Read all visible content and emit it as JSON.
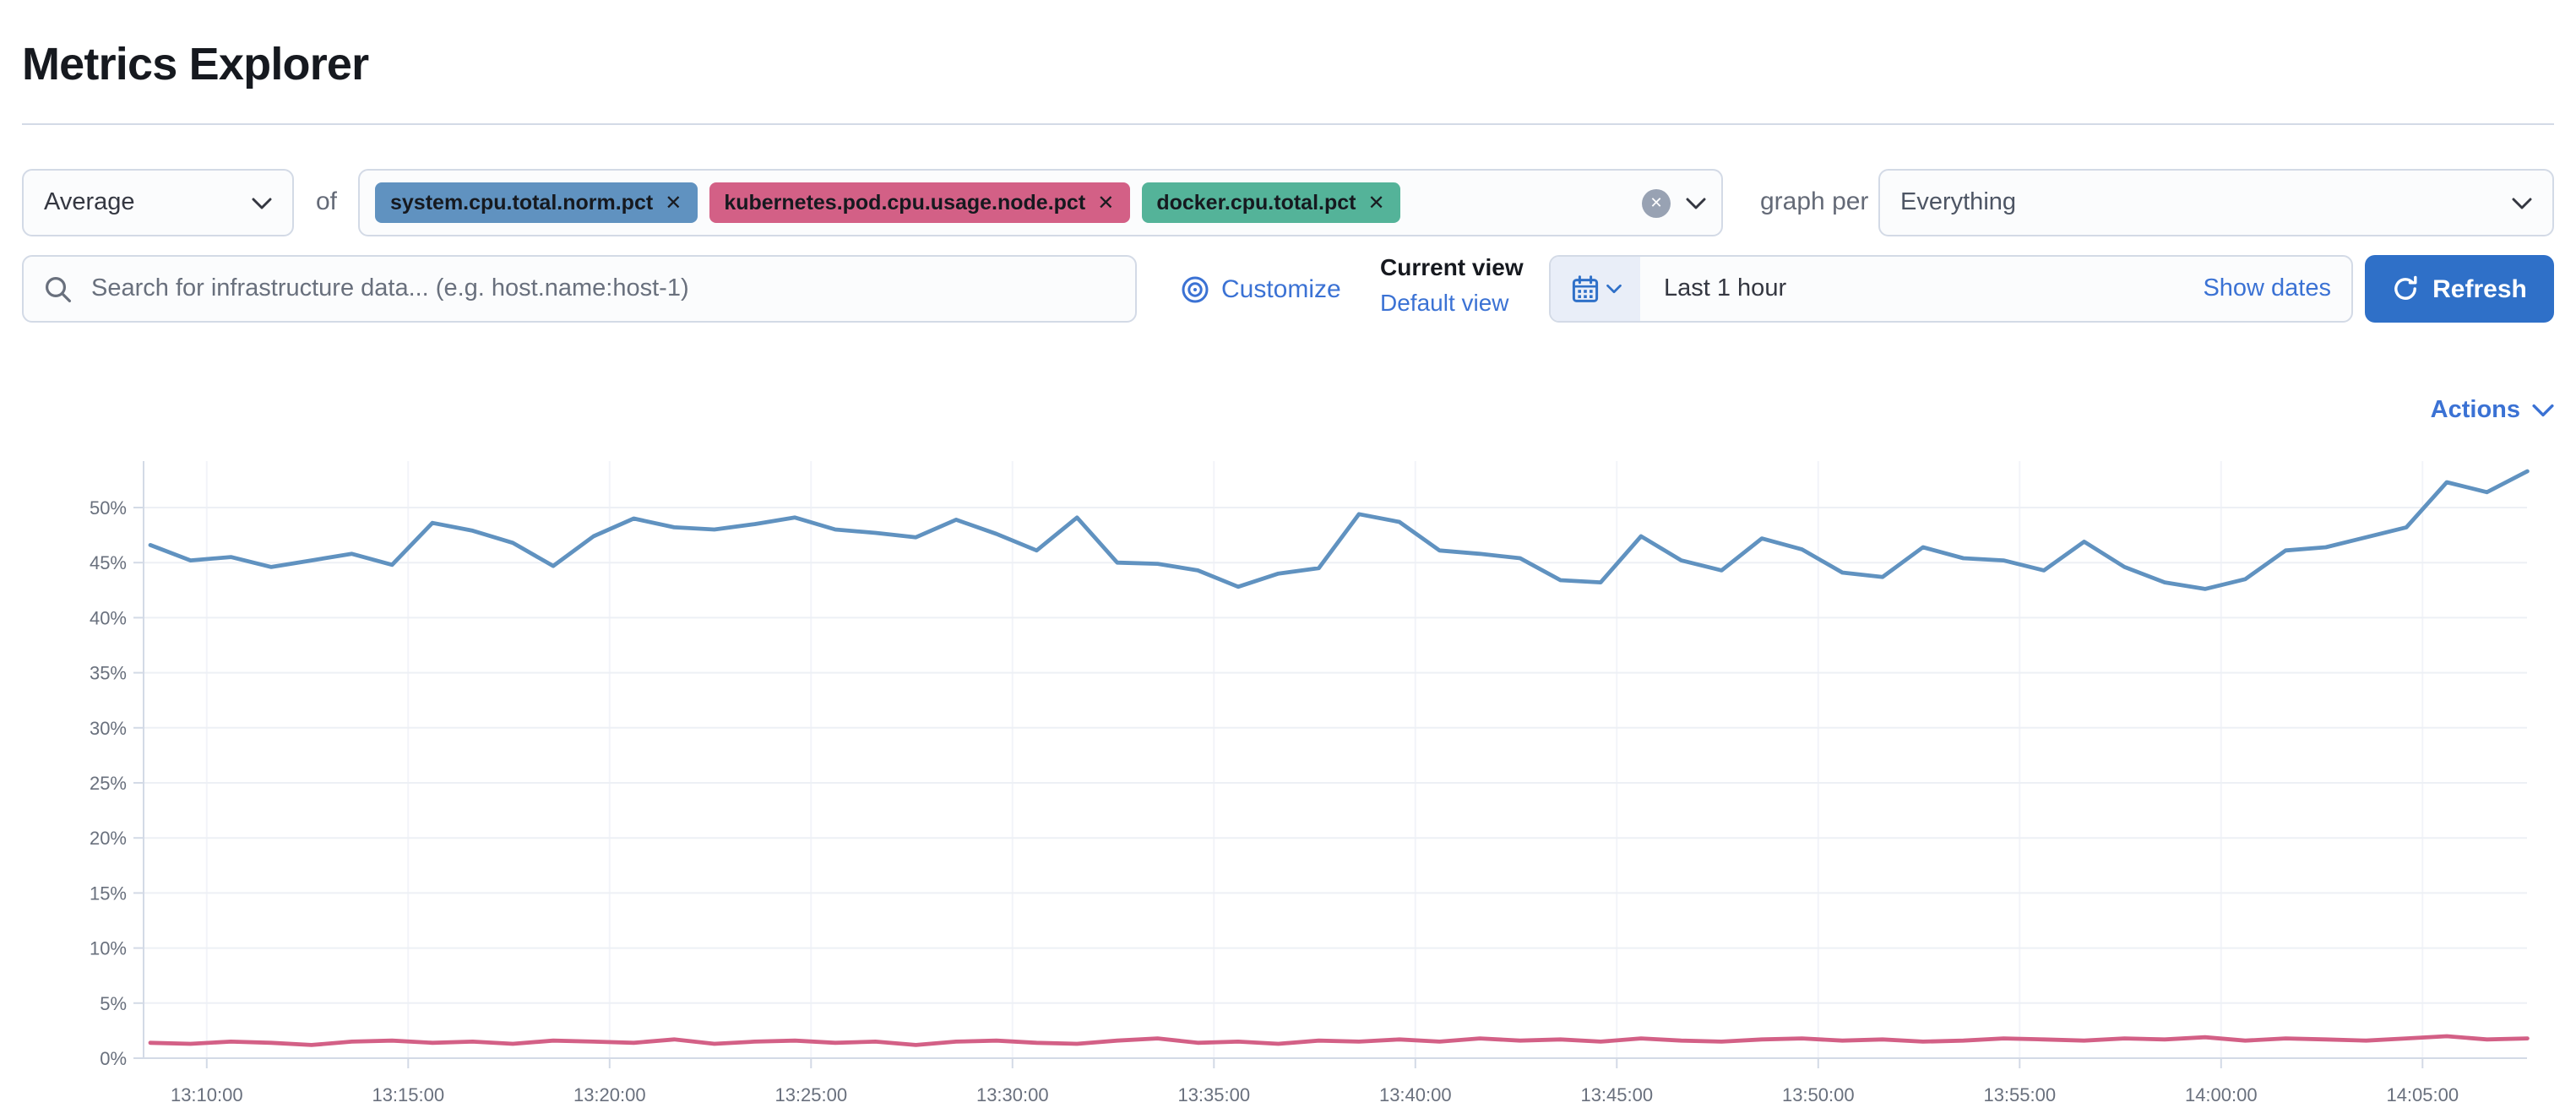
{
  "page": {
    "title": "Metrics Explorer"
  },
  "controls": {
    "aggregation": {
      "value": "Average"
    },
    "of_label": "of",
    "metrics": [
      {
        "label": "system.cpu.total.norm.pct",
        "color": "#6092C0",
        "remove_icon": "✕"
      },
      {
        "label": "kubernetes.pod.cpu.usage.node.pct",
        "color": "#D36086",
        "remove_icon": "✕"
      },
      {
        "label": "docker.cpu.total.pct",
        "color": "#54B399",
        "remove_icon": "✕"
      }
    ],
    "clear_all_icon": "✕",
    "graph_per_label": "graph per",
    "group_by": {
      "value": "Everything"
    }
  },
  "toolbar": {
    "search": {
      "placeholder": "Search for infrastructure data... (e.g. host.name:host-1)",
      "value": ""
    },
    "customize_label": "Customize",
    "current_view_label": "Current view",
    "default_view_label": "Default view",
    "time_range": "Last 1 hour",
    "show_dates_label": "Show dates",
    "refresh_label": "Refresh"
  },
  "actions_label": "Actions",
  "colors": {
    "link": "#3b72d4",
    "primary_button": "#2f70c8",
    "field_border": "#d3dae6",
    "field_bg": "#fbfcfd",
    "series_blue": "#6092C0",
    "series_pink": "#D36086",
    "axis_text": "#69707d"
  },
  "chart_data": {
    "type": "line",
    "title": "",
    "xlabel": "",
    "ylabel": "",
    "legend": "none",
    "grid": true,
    "y_axis": {
      "min": 0,
      "max": 55,
      "unit": "%",
      "tick_labels": [
        "0%",
        "5%",
        "10%",
        "15%",
        "20%",
        "25%",
        "30%",
        "35%",
        "40%",
        "45%",
        "50%"
      ]
    },
    "x_axis": {
      "start_time": "13:08:00",
      "interval_seconds": 60,
      "labels": [
        "13:10:00",
        "13:15:00",
        "13:20:00",
        "13:25:00",
        "13:30:00",
        "13:35:00",
        "13:40:00",
        "13:45:00",
        "13:50:00",
        "13:55:00",
        "14:00:00",
        "14:05:00"
      ]
    },
    "series": [
      {
        "name": "system.cpu.total.norm.pct",
        "color": "#6092C0",
        "values": [
          46.6,
          45.2,
          45.5,
          44.6,
          45.2,
          45.8,
          44.8,
          48.6,
          47.9,
          46.8,
          44.7,
          47.4,
          49.0,
          48.2,
          48.0,
          48.5,
          49.1,
          48.0,
          47.7,
          47.3,
          48.9,
          47.6,
          46.1,
          49.1,
          45.0,
          44.9,
          44.3,
          42.8,
          44.0,
          44.5,
          49.4,
          48.7,
          46.1,
          45.8,
          45.4,
          43.4,
          43.2,
          47.4,
          45.2,
          44.3,
          47.2,
          46.2,
          44.1,
          43.7,
          46.4,
          45.4,
          45.2,
          44.3,
          46.9,
          44.6,
          43.2,
          42.6,
          43.5,
          46.1,
          46.4,
          47.3,
          48.2,
          52.3,
          51.4,
          53.3
        ]
      },
      {
        "name": "kubernetes.pod.cpu.usage.node.pct",
        "color": "#D36086",
        "values": [
          1.4,
          1.3,
          1.5,
          1.4,
          1.2,
          1.5,
          1.6,
          1.4,
          1.5,
          1.3,
          1.6,
          1.5,
          1.4,
          1.7,
          1.3,
          1.5,
          1.6,
          1.4,
          1.5,
          1.2,
          1.5,
          1.6,
          1.4,
          1.3,
          1.6,
          1.8,
          1.4,
          1.5,
          1.3,
          1.6,
          1.5,
          1.7,
          1.5,
          1.8,
          1.6,
          1.7,
          1.5,
          1.8,
          1.6,
          1.5,
          1.7,
          1.8,
          1.6,
          1.7,
          1.5,
          1.6,
          1.8,
          1.7,
          1.6,
          1.8,
          1.7,
          1.9,
          1.6,
          1.8,
          1.7,
          1.6,
          1.8,
          2.0,
          1.7,
          1.8
        ]
      }
    ]
  }
}
